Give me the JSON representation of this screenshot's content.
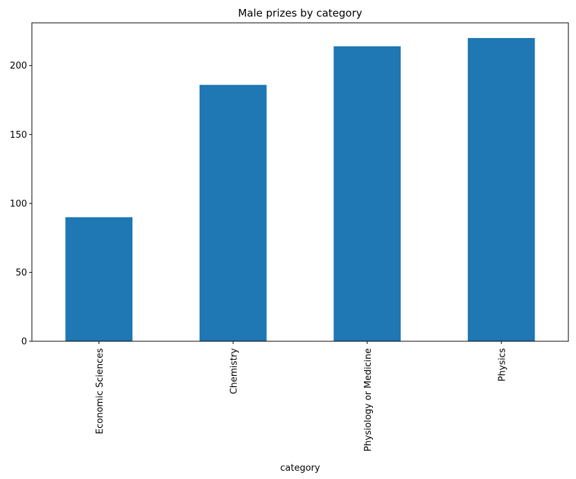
{
  "chart_data": {
    "type": "bar",
    "title": "Male prizes by category",
    "xlabel": "category",
    "ylabel": "",
    "categories": [
      "Economic Sciences",
      "Chemistry",
      "Physiology or Medicine",
      "Physics"
    ],
    "values": [
      90,
      186,
      214,
      220
    ],
    "ylim": [
      0,
      231
    ],
    "yticks": [
      0,
      50,
      100,
      150,
      200
    ],
    "ytick_labels": [
      "0",
      "50",
      "100",
      "150",
      "200"
    ],
    "bar_color": "#1f77b4",
    "grid": false,
    "legend": "none",
    "xtick_rotation": "vertical"
  }
}
